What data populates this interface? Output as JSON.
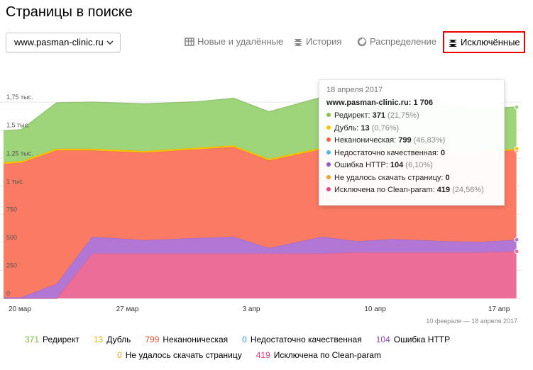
{
  "page": {
    "title": "Страницы в поиске"
  },
  "site_select": {
    "value": "www.pasman-clinic.ru"
  },
  "tabs": [
    {
      "label": "Новые и удалённые",
      "icon": "table-icon",
      "active": false
    },
    {
      "label": "История",
      "icon": "stack-icon",
      "active": false
    },
    {
      "label": "Распределение",
      "icon": "pie-icon",
      "active": false
    },
    {
      "label": "Исключённые",
      "icon": "stack-icon",
      "active": true
    }
  ],
  "tooltip": {
    "date": "18 апреля 2017",
    "site": "www.pasman-clinic.ru:",
    "total": "1 706",
    "rows": [
      {
        "label": "Редирект:",
        "value": "371",
        "pct": "(21,75%)",
        "color": "#8bc34a"
      },
      {
        "label": "Дубль:",
        "value": "13",
        "pct": "(0,76%)",
        "color": "#ffc400"
      },
      {
        "label": "Неканоническая:",
        "value": "799",
        "pct": "(46,83%)",
        "color": "#ff5a3c"
      },
      {
        "label": "Недостаточно качественная:",
        "value": "0",
        "pct": "",
        "color": "#4fb5e8"
      },
      {
        "label": "Ошибка HTTP:",
        "value": "104",
        "pct": "(6,10%)",
        "color": "#9b4fc9"
      },
      {
        "label": "Не удалось скачать страницу:",
        "value": "0",
        "pct": "",
        "color": "#f0a020"
      },
      {
        "label": "Исключена по Clean-param:",
        "value": "419",
        "pct": "(24,56%)",
        "color": "#e8457e"
      }
    ]
  },
  "period": "10 февраля — 18 апреля 2017",
  "legend": [
    {
      "value": "371",
      "label": "Редирект",
      "color": "#7cbb3c"
    },
    {
      "value": "13",
      "label": "Дубль",
      "color": "#f0b400"
    },
    {
      "value": "799",
      "label": "Неканоническая",
      "color": "#f05033"
    },
    {
      "value": "0",
      "label": "Недостаточно качественная",
      "color": "#3aa5e0"
    },
    {
      "value": "104",
      "label": "Ошибка HTTP",
      "color": "#9045c0"
    },
    {
      "value": "0",
      "label": "Не удалось скачать страницу",
      "color": "#f0a020"
    },
    {
      "value": "419",
      "label": "Исключена по Clean-param",
      "color": "#e03c70"
    }
  ],
  "chart_data": {
    "type": "area",
    "stacked": true,
    "ylim": [
      0,
      2000
    ],
    "y_ticks": [
      {
        "value": 0,
        "label": "0"
      },
      {
        "value": 250,
        "label": "250"
      },
      {
        "value": 500,
        "label": "500"
      },
      {
        "value": 750,
        "label": "750"
      },
      {
        "value": 1000,
        "label": "1 тыс."
      },
      {
        "value": 1250,
        "label": "1,25 тыс."
      },
      {
        "value": 1500,
        "label": "1,5 тыс."
      },
      {
        "value": 1750,
        "label": "1,75 тыс."
      }
    ],
    "x": [
      "2017-03-20",
      "2017-03-21",
      "2017-03-23",
      "2017-03-25",
      "2017-03-28",
      "2017-03-31",
      "2017-04-02",
      "2017-04-04",
      "2017-04-07",
      "2017-04-09",
      "2017-04-11",
      "2017-04-14",
      "2017-04-16",
      "2017-04-18"
    ],
    "x_ticks": [
      {
        "date": "2017-03-20",
        "label": "20 мар"
      },
      {
        "date": "2017-03-27",
        "label": "27 мар"
      },
      {
        "date": "2017-04-03",
        "label": "3 апр"
      },
      {
        "date": "2017-04-10",
        "label": "10 апр"
      },
      {
        "date": "2017-04-17",
        "label": "17 апр"
      }
    ],
    "series": [
      {
        "name": "Исключена по Clean-param",
        "color": "#ec6d98",
        "values": [
          0,
          0,
          0,
          400,
          400,
          400,
          400,
          400,
          400,
          410,
          410,
          410,
          410,
          419
        ]
      },
      {
        "name": "Ошибка HTTP",
        "color": "#b276d4",
        "values": [
          10,
          10,
          130,
          150,
          120,
          140,
          150,
          50,
          150,
          100,
          120,
          100,
          95,
          104
        ]
      },
      {
        "name": "Недостаточно качественная",
        "color": "#4fb5e8",
        "values": [
          0,
          0,
          0,
          0,
          0,
          0,
          0,
          0,
          0,
          0,
          0,
          0,
          0,
          0
        ]
      },
      {
        "name": "Неканоническая",
        "color": "#fb7a63",
        "values": [
          1190,
          1200,
          1190,
          770,
          780,
          790,
          800,
          780,
          780,
          780,
          790,
          790,
          795,
          799
        ]
      },
      {
        "name": "Дубль",
        "color": "#ffc400",
        "values": [
          15,
          15,
          15,
          15,
          15,
          15,
          15,
          15,
          15,
          13,
          13,
          13,
          13,
          13
        ]
      },
      {
        "name": "Не удалось скачать страницу",
        "color": "#f0a020",
        "values": [
          0,
          0,
          0,
          0,
          0,
          0,
          0,
          0,
          0,
          0,
          0,
          0,
          0,
          0
        ]
      },
      {
        "name": "Редирект",
        "color": "#9ed47a",
        "values": [
          280,
          280,
          410,
          415,
          420,
          410,
          420,
          420,
          450,
          440,
          420,
          410,
          380,
          371
        ]
      }
    ]
  }
}
